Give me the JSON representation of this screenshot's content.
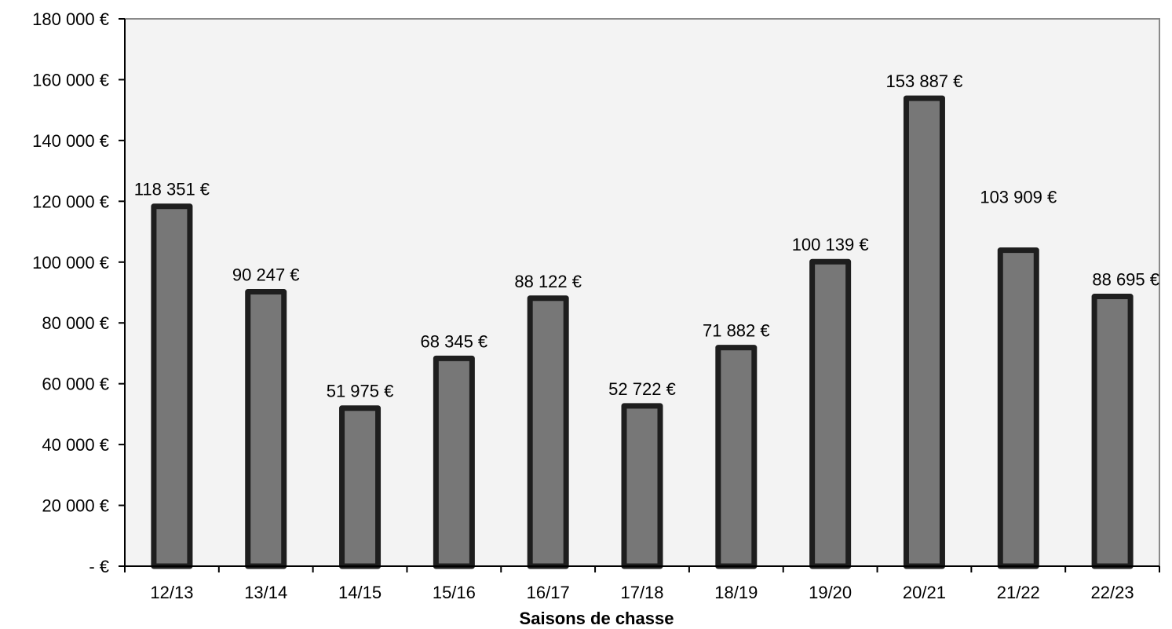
{
  "chart_data": {
    "type": "bar",
    "title": "",
    "xlabel": "Saisons de chasse",
    "ylabel": "",
    "categories": [
      "12/13",
      "13/14",
      "14/15",
      "15/16",
      "16/17",
      "17/18",
      "18/19",
      "19/20",
      "20/21",
      "21/22",
      "22/23"
    ],
    "values": [
      118351,
      90247,
      51975,
      68345,
      88122,
      52722,
      71882,
      100139,
      153887,
      103909,
      88695
    ],
    "value_labels": [
      "118 351 €",
      "90 247 €",
      "51 975 €",
      "68 345 €",
      "88 122 €",
      "52 722 €",
      "71 882 €",
      "100 139 €",
      "153 887 €",
      "103 909 €",
      "88 695 €"
    ],
    "ylim": [
      0,
      180000
    ],
    "yticks": [
      0,
      20000,
      40000,
      60000,
      80000,
      100000,
      120000,
      140000,
      160000,
      180000
    ],
    "ytick_labels": [
      "-  €",
      "20 000 €",
      "40 000 €",
      "60 000 €",
      "80 000 €",
      "100 000 €",
      "120 000 €",
      "140 000 €",
      "160 000 €",
      "180 000 €"
    ],
    "grid": false,
    "legend": "none",
    "colors": {
      "plot_background": "#f3f3f3",
      "bar_fill": "#777777",
      "bar_stroke": "#1e1e1e",
      "axis": "#000000",
      "frame": "#8a8a8a"
    }
  }
}
